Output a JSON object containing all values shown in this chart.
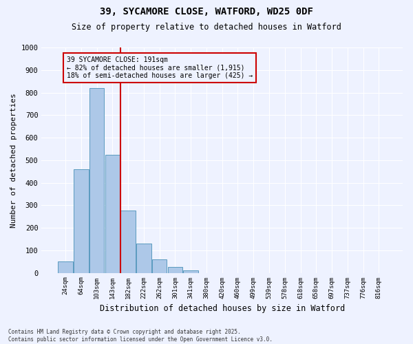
{
  "title_line1": "39, SYCAMORE CLOSE, WATFORD, WD25 0DF",
  "title_line2": "Size of property relative to detached houses in Watford",
  "xlabel": "Distribution of detached houses by size in Watford",
  "ylabel": "Number of detached properties",
  "bin_labels": [
    "24sqm",
    "64sqm",
    "103sqm",
    "143sqm",
    "182sqm",
    "222sqm",
    "262sqm",
    "301sqm",
    "341sqm",
    "380sqm",
    "420sqm",
    "460sqm",
    "499sqm",
    "539sqm",
    "578sqm",
    "618sqm",
    "658sqm",
    "697sqm",
    "737sqm",
    "776sqm",
    "816sqm"
  ],
  "bar_heights": [
    50,
    460,
    820,
    525,
    275,
    130,
    60,
    25,
    10,
    0,
    0,
    0,
    0,
    0,
    0,
    0,
    0,
    0,
    0,
    0,
    0
  ],
  "bar_color": "#adc8e8",
  "bar_edge_color": "#5a9abf",
  "vline_x": 3.5,
  "vline_color": "#cc0000",
  "annotation_text": "39 SYCAMORE CLOSE: 191sqm\n← 82% of detached houses are smaller (1,915)\n18% of semi-detached houses are larger (425) →",
  "annotation_box_facecolor": "#eef2ff",
  "annotation_box_edgecolor": "#cc0000",
  "ylim": [
    0,
    1000
  ],
  "yticks": [
    0,
    100,
    200,
    300,
    400,
    500,
    600,
    700,
    800,
    900,
    1000
  ],
  "background_color": "#eef2ff",
  "grid_color": "#ffffff",
  "footnote": "Contains HM Land Registry data © Crown copyright and database right 2025.\nContains public sector information licensed under the Open Government Licence v3.0."
}
